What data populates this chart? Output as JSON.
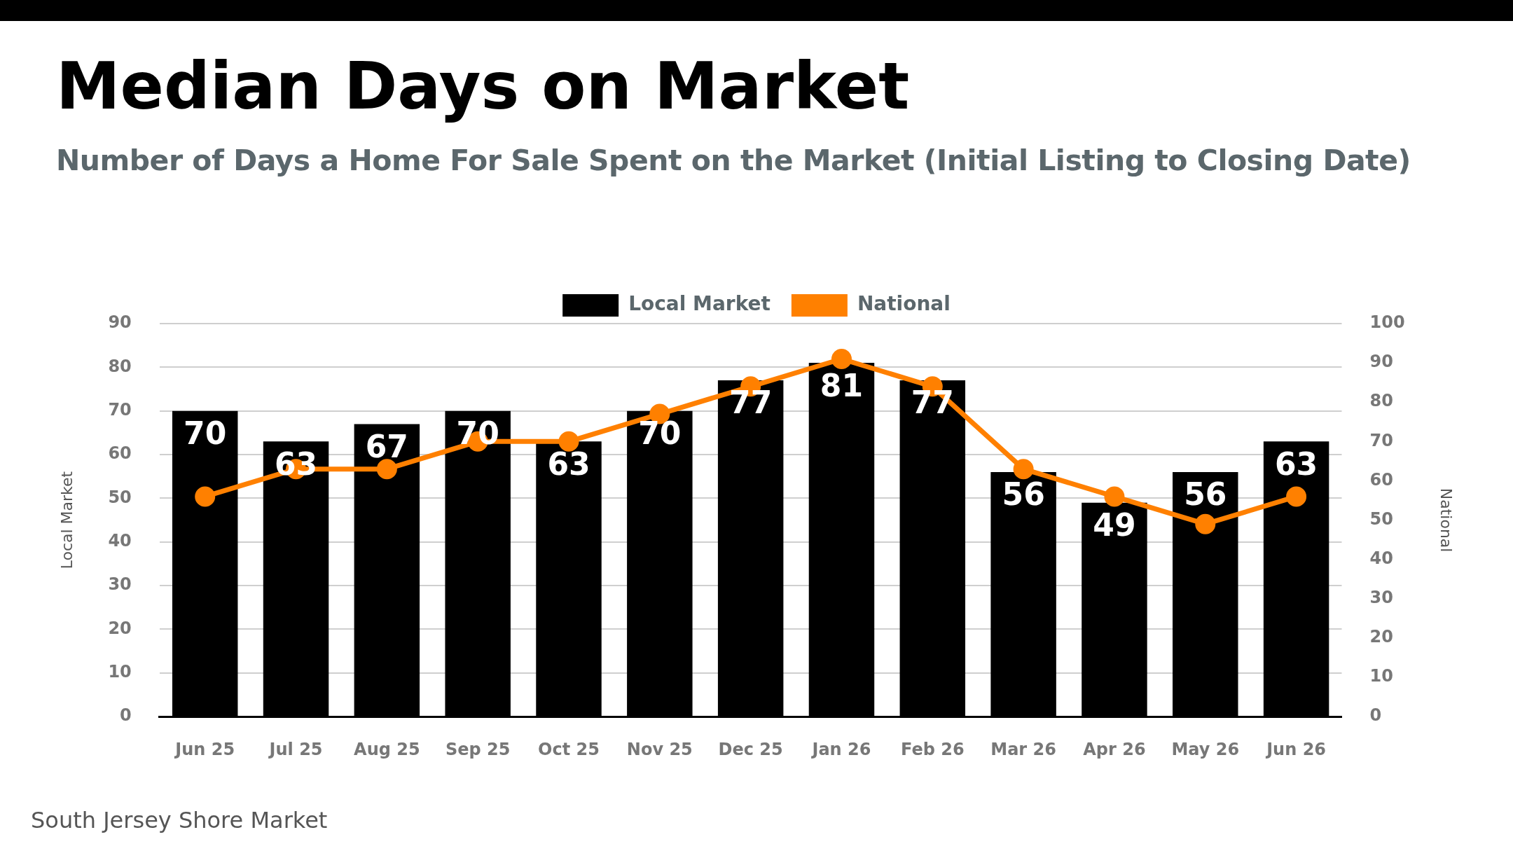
{
  "chart_data": {
    "type": "bar",
    "title": "Median Days on Market",
    "subtitle": "Number of Days a Home For Sale Spent on the Market (Initial Listing to Closing Date)",
    "ylabel": "Local Market",
    "y2label": "National",
    "categories": [
      "Jun 25",
      "Jul 25",
      "Aug 25",
      "Sep 25",
      "Oct 25",
      "Nov 25",
      "Dec 25",
      "Jan 26",
      "Feb 26",
      "Mar 26",
      "Apr 26",
      "May 26",
      "Jun 26"
    ],
    "series": [
      {
        "name": "Local Market",
        "color": "#000000",
        "values": [
          70,
          63,
          67,
          70,
          63,
          70,
          77,
          81,
          77,
          56,
          49,
          56,
          63
        ],
        "value_labels": [
          "70",
          "63",
          "67",
          "70",
          "63",
          "70",
          "77",
          "81",
          "77",
          "56",
          "49",
          "56",
          "63"
        ]
      },
      {
        "name": "National",
        "type": "line",
        "axis": "y2",
        "color": "#ff8000",
        "values": [
          56,
          63,
          63,
          70,
          70,
          77,
          84,
          91,
          84,
          63,
          56,
          49,
          56
        ]
      }
    ],
    "ylim": [
      0,
      90
    ],
    "yticks": [
      0,
      10,
      20,
      30,
      40,
      50,
      60,
      70,
      80,
      90
    ],
    "y2lim": [
      0,
      100
    ],
    "y2ticks": [
      0,
      10,
      20,
      30,
      40,
      50,
      60,
      70,
      80,
      90,
      100
    ],
    "grid": "y",
    "legend": "top",
    "marker": "circle",
    "line_style": "solid",
    "annotations": [
      "South Jersey Shore Market"
    ]
  }
}
